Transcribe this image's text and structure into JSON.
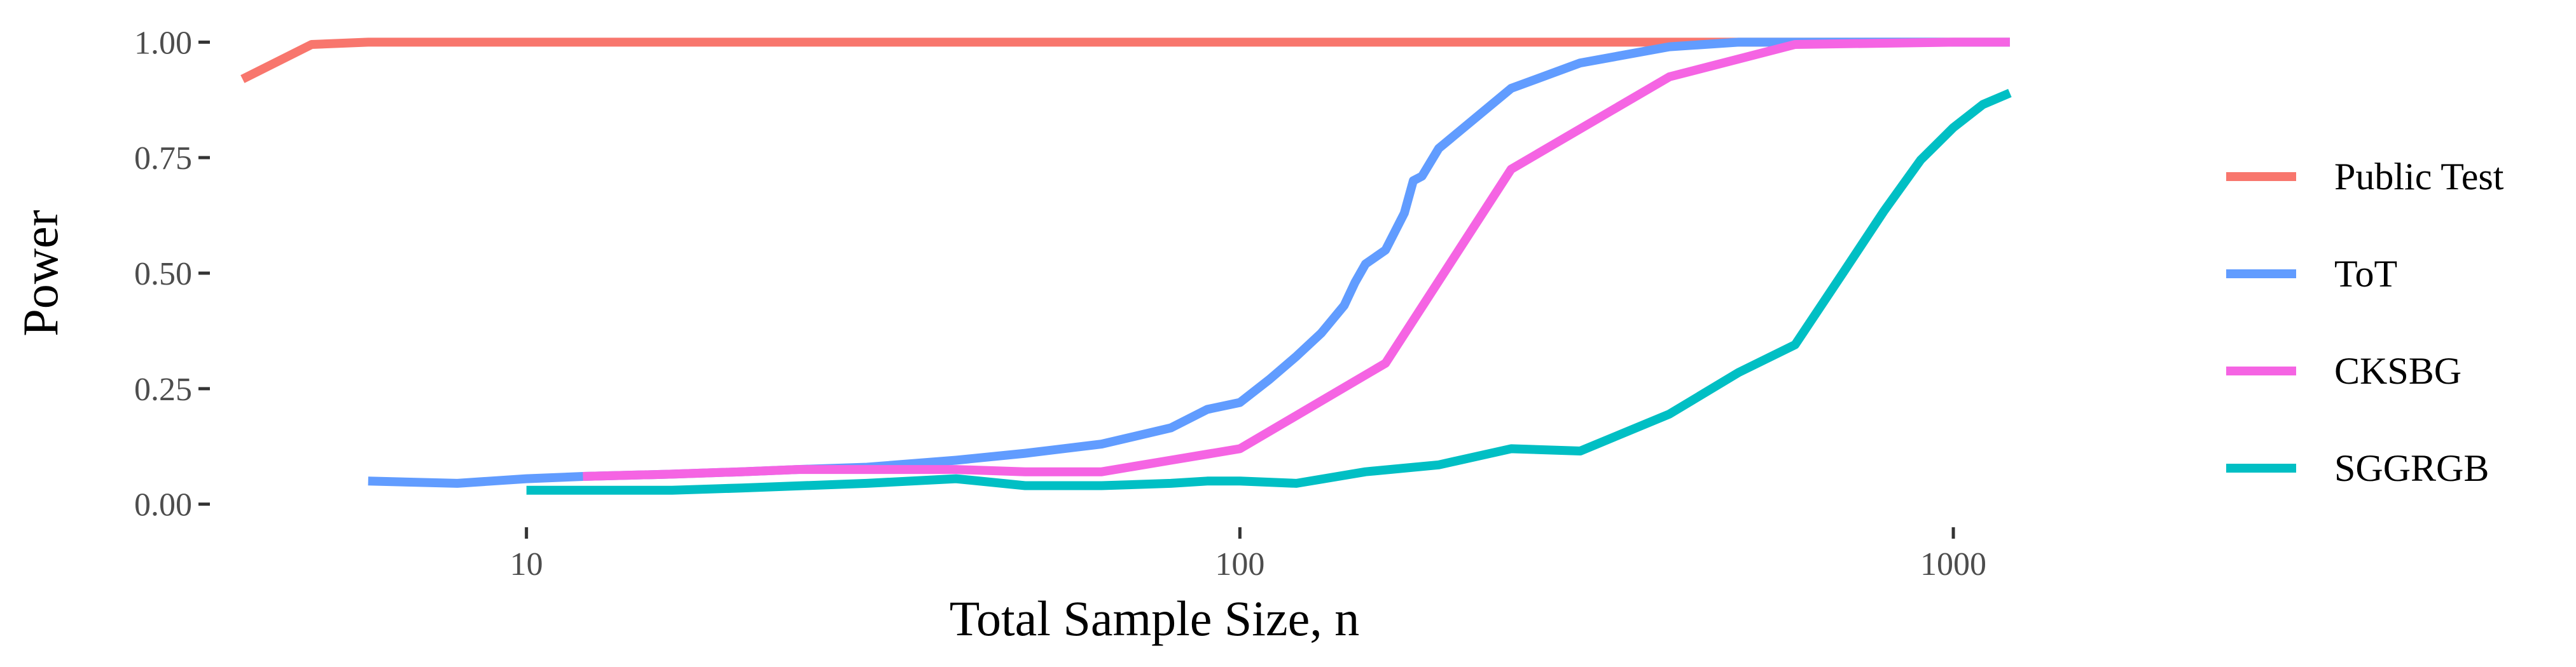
{
  "chart_data": {
    "type": "line",
    "title": "",
    "xlabel": "Total Sample Size, n",
    "ylabel": "Power",
    "x_scale": "log10",
    "xlim": [
      3.6,
      1600
    ],
    "ylim": [
      -0.05,
      1.05
    ],
    "x_ticks": [
      10,
      100,
      1000
    ],
    "x_tick_labels": [
      "10",
      "100",
      "1000"
    ],
    "y_ticks": [
      0,
      0.25,
      0.5,
      0.75,
      1.0
    ],
    "y_tick_labels": [
      "0.00",
      "0.25",
      "0.50",
      "0.75",
      "1.00"
    ],
    "grid": false,
    "legend": {
      "position": "right"
    },
    "series": [
      {
        "name": "Public Test",
        "color": "#F8766D",
        "x": [
          4,
          5,
          6,
          8,
          10,
          20,
          50,
          100,
          200,
          500,
          1000,
          1200
        ],
        "y": [
          0.92,
          0.995,
          1.0,
          1.0,
          1.0,
          1.0,
          1.0,
          1.0,
          1.0,
          1.0,
          1.0,
          1.0
        ]
      },
      {
        "name": "ToT",
        "color": "#619CFF",
        "x": [
          6,
          8,
          10,
          12,
          16,
          20,
          24,
          30,
          40,
          50,
          64,
          80,
          90,
          100,
          110,
          120,
          130,
          140,
          145,
          150,
          160,
          170,
          175,
          180,
          190,
          240,
          300,
          400,
          500,
          600,
          700,
          800,
          1000,
          1200
        ],
        "y": [
          0.05,
          0.045,
          0.055,
          0.06,
          0.065,
          0.07,
          0.075,
          0.08,
          0.095,
          0.11,
          0.13,
          0.165,
          0.205,
          0.22,
          0.27,
          0.32,
          0.37,
          0.43,
          0.48,
          0.52,
          0.55,
          0.63,
          0.7,
          0.71,
          0.77,
          0.9,
          0.955,
          0.99,
          1.0,
          1.0,
          1.0,
          1.0,
          1.0,
          1.0
        ]
      },
      {
        "name": "CKSBG",
        "color": "#F564E3",
        "x": [
          12,
          16,
          20,
          24,
          30,
          40,
          50,
          64,
          80,
          100,
          160,
          240,
          400,
          600,
          1000,
          1200
        ],
        "y": [
          0.06,
          0.065,
          0.07,
          0.075,
          0.075,
          0.075,
          0.07,
          0.07,
          0.095,
          0.12,
          0.305,
          0.725,
          0.925,
          0.995,
          1.0,
          1.0
        ]
      },
      {
        "name": "SGGRGB",
        "color": "#00BFC4",
        "x": [
          10,
          16,
          20,
          30,
          40,
          50,
          64,
          80,
          90,
          100,
          120,
          150,
          190,
          240,
          300,
          400,
          500,
          600,
          700,
          800,
          900,
          1000,
          1100,
          1200
        ],
        "y": [
          0.03,
          0.03,
          0.035,
          0.045,
          0.055,
          0.04,
          0.04,
          0.045,
          0.05,
          0.05,
          0.045,
          0.07,
          0.085,
          0.12,
          0.115,
          0.195,
          0.285,
          0.345,
          0.5,
          0.635,
          0.745,
          0.815,
          0.865,
          0.89
        ]
      }
    ]
  }
}
